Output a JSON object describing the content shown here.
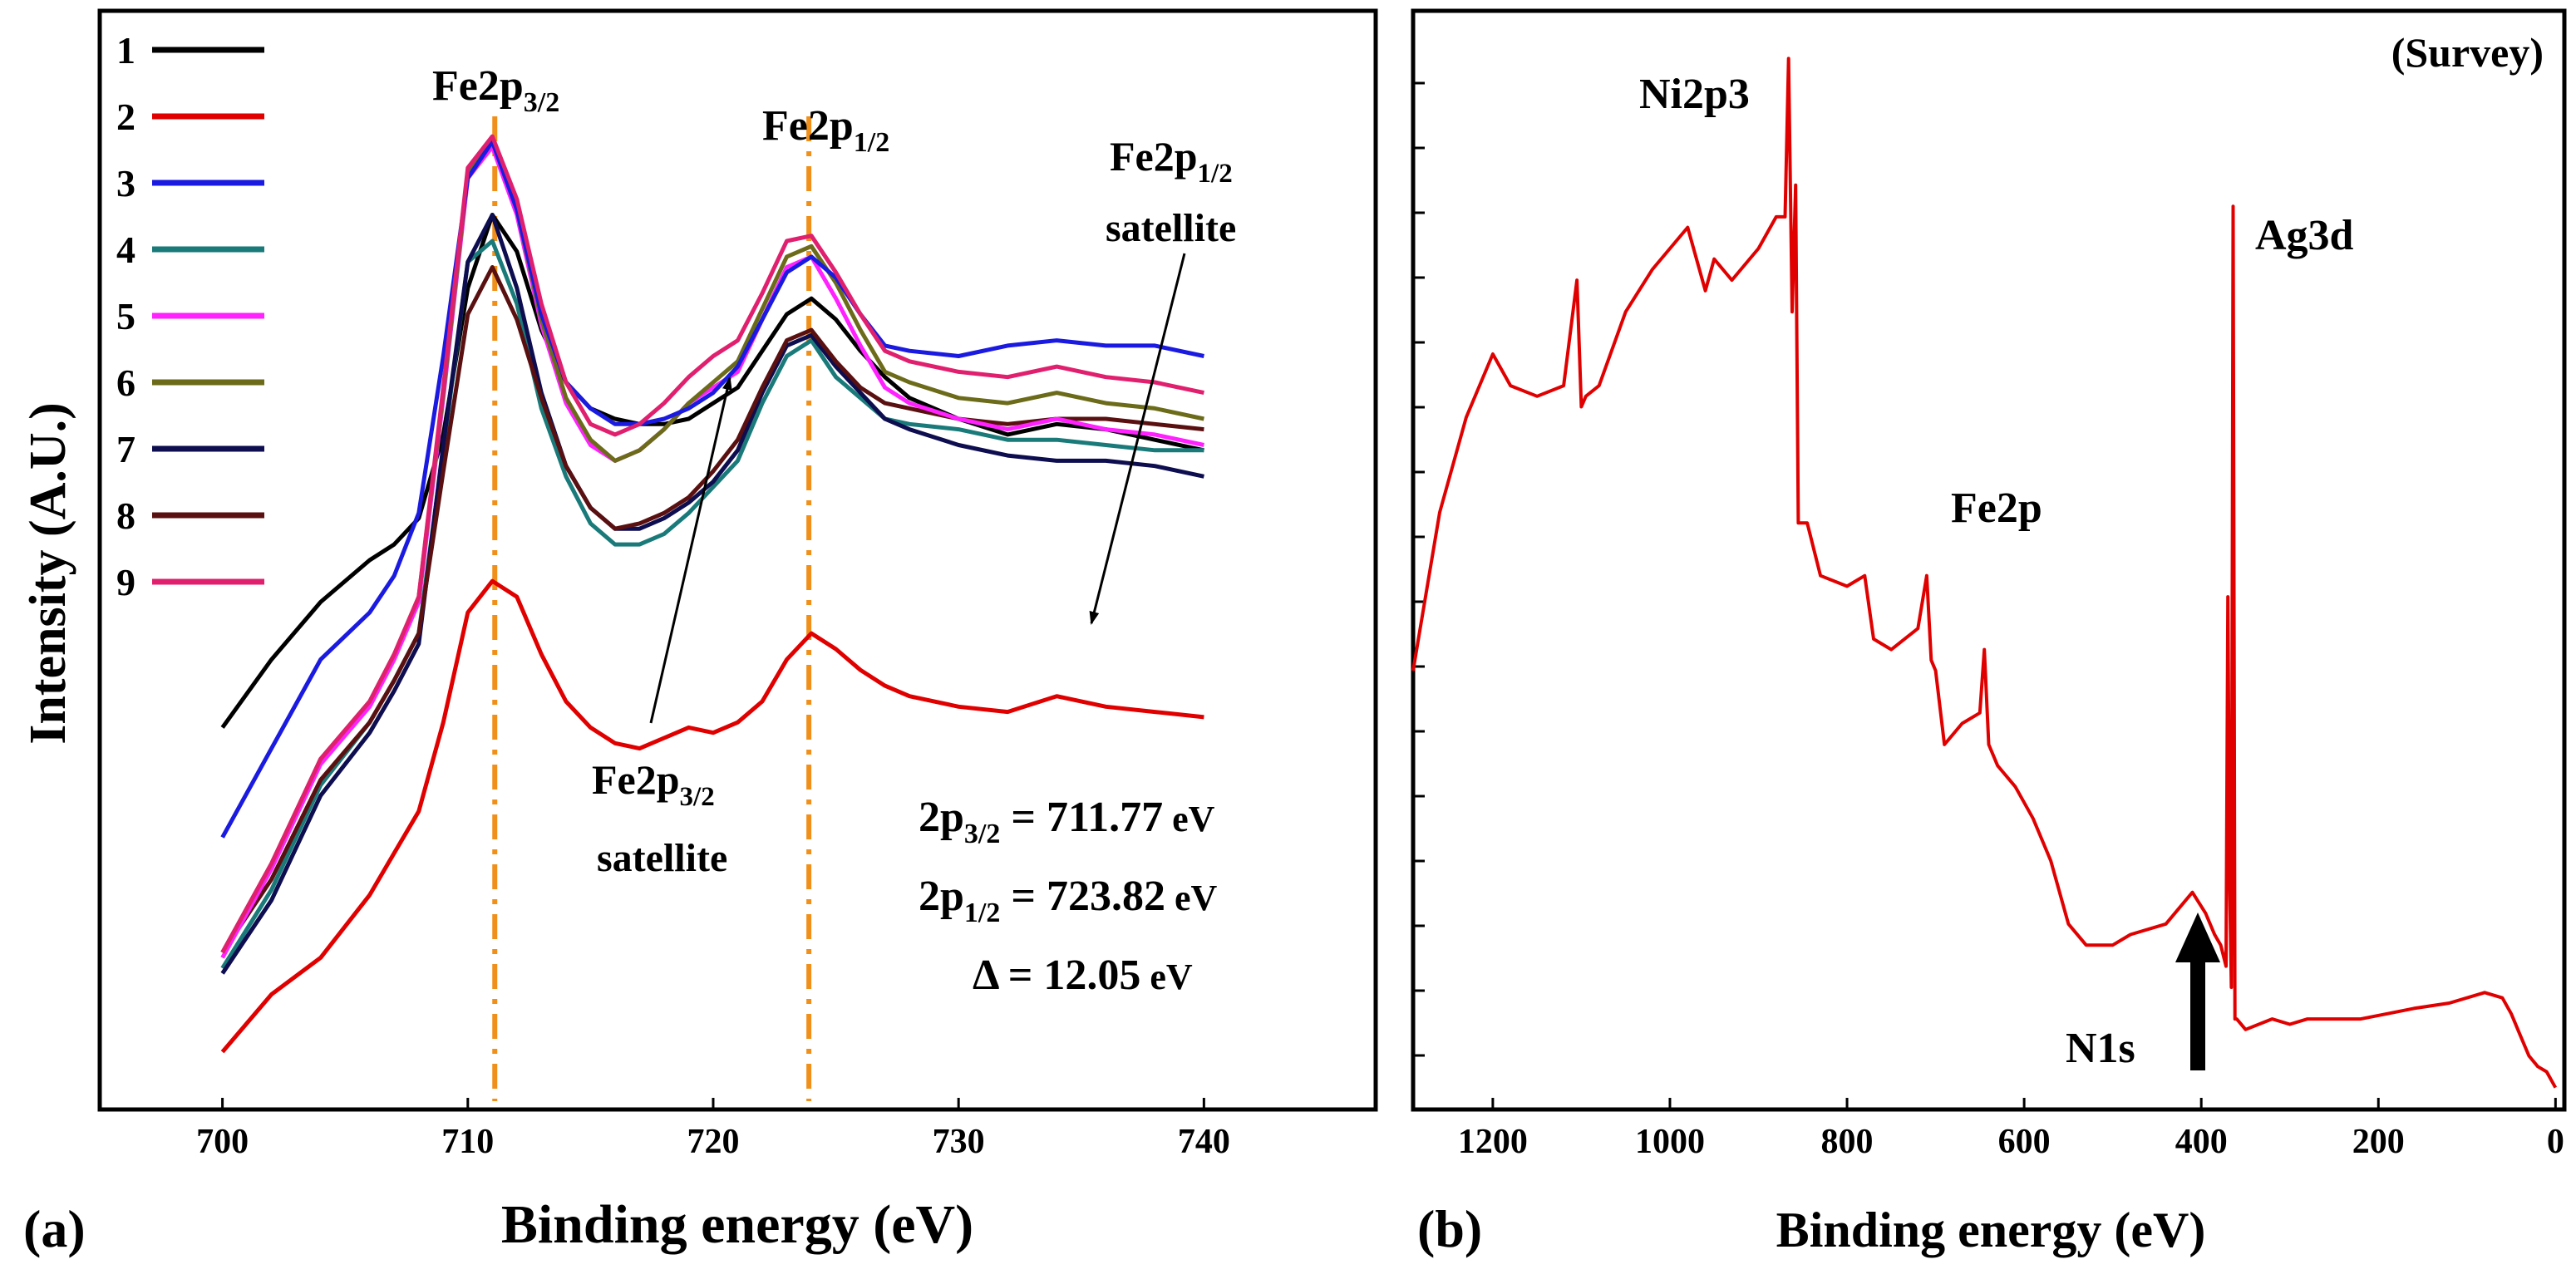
{
  "figure": {
    "panel_a_label": "(a)",
    "panel_b_label": "(b)"
  },
  "chart_data": [
    {
      "type": "line",
      "panel": "(a)",
      "xlabel": "Binding energy (eV)",
      "ylabel": "Intensity (A.U.)",
      "xlim": [
        695,
        747
      ],
      "ylim": [
        0,
        10.5
      ],
      "xticks": [
        700,
        710,
        720,
        730,
        740
      ],
      "xtick_labels": [
        "700",
        "710",
        "720",
        "730",
        "740"
      ],
      "grid": false,
      "legend_position": "top-left",
      "x": [
        700,
        702,
        704,
        706,
        707,
        708,
        709,
        710,
        711,
        712,
        713,
        714,
        715,
        716,
        717,
        718,
        719,
        720,
        721,
        722,
        723,
        724,
        725,
        726,
        727,
        728,
        730,
        732,
        734,
        736,
        738,
        740
      ],
      "series": [
        {
          "name": "1",
          "color": "#000000",
          "values": [
            3.65,
            4.3,
            4.85,
            5.25,
            5.4,
            5.65,
            6.45,
            7.85,
            8.55,
            8.2,
            7.45,
            6.95,
            6.7,
            6.6,
            6.55,
            6.55,
            6.6,
            6.75,
            6.9,
            7.25,
            7.6,
            7.75,
            7.55,
            7.25,
            7.0,
            6.8,
            6.6,
            6.45,
            6.55,
            6.5,
            6.4,
            6.3
          ]
        },
        {
          "name": "2",
          "color": "#e00000",
          "values": [
            0.55,
            1.1,
            1.45,
            2.05,
            2.45,
            2.85,
            3.7,
            4.75,
            5.05,
            4.9,
            4.35,
            3.9,
            3.65,
            3.5,
            3.45,
            3.55,
            3.65,
            3.6,
            3.7,
            3.9,
            4.3,
            4.55,
            4.4,
            4.2,
            4.05,
            3.95,
            3.85,
            3.8,
            3.95,
            3.85,
            3.8,
            3.75
          ]
        },
        {
          "name": "3",
          "color": "#1a1ae0",
          "values": [
            2.6,
            3.45,
            4.3,
            4.75,
            5.1,
            5.7,
            7.2,
            8.9,
            9.25,
            8.6,
            7.6,
            6.95,
            6.7,
            6.55,
            6.55,
            6.6,
            6.7,
            6.85,
            7.1,
            7.55,
            8.0,
            8.15,
            7.95,
            7.6,
            7.3,
            7.25,
            7.2,
            7.3,
            7.35,
            7.3,
            7.3,
            7.2
          ]
        },
        {
          "name": "4",
          "color": "#1a7a7a",
          "values": [
            1.35,
            2.1,
            3.1,
            3.7,
            4.1,
            4.55,
            6.3,
            8.1,
            8.3,
            7.7,
            6.7,
            6.05,
            5.6,
            5.4,
            5.4,
            5.5,
            5.7,
            5.95,
            6.2,
            6.75,
            7.2,
            7.35,
            7.0,
            6.8,
            6.6,
            6.55,
            6.5,
            6.4,
            6.4,
            6.35,
            6.3,
            6.3
          ]
        },
        {
          "name": "5",
          "color": "#ff22ff",
          "values": [
            1.45,
            2.3,
            3.3,
            3.85,
            4.3,
            4.85,
            6.8,
            8.9,
            9.2,
            8.55,
            7.5,
            6.75,
            6.35,
            6.2,
            6.3,
            6.5,
            6.75,
            6.9,
            7.05,
            7.55,
            8.05,
            8.15,
            7.75,
            7.3,
            6.9,
            6.75,
            6.6,
            6.5,
            6.6,
            6.5,
            6.45,
            6.35
          ]
        },
        {
          "name": "6",
          "color": "#6b6b1a",
          "values": [
            1.5,
            2.35,
            3.35,
            3.9,
            4.35,
            4.9,
            6.85,
            8.95,
            9.25,
            8.6,
            7.55,
            6.8,
            6.4,
            6.2,
            6.3,
            6.5,
            6.75,
            6.95,
            7.15,
            7.65,
            8.15,
            8.25,
            7.9,
            7.45,
            7.05,
            6.95,
            6.8,
            6.75,
            6.85,
            6.75,
            6.7,
            6.6
          ]
        },
        {
          "name": "7",
          "color": "#0d0d50",
          "values": [
            1.3,
            2.0,
            3.0,
            3.6,
            4.0,
            4.45,
            6.35,
            8.1,
            8.55,
            7.85,
            6.85,
            6.15,
            5.75,
            5.55,
            5.55,
            5.65,
            5.8,
            6.0,
            6.3,
            6.85,
            7.3,
            7.4,
            7.1,
            6.85,
            6.6,
            6.5,
            6.35,
            6.25,
            6.2,
            6.2,
            6.15,
            6.05
          ]
        },
        {
          "name": "8",
          "color": "#5a1010",
          "values": [
            1.5,
            2.2,
            3.15,
            3.7,
            4.1,
            4.55,
            6.1,
            7.6,
            8.05,
            7.55,
            6.8,
            6.15,
            5.75,
            5.55,
            5.6,
            5.7,
            5.85,
            6.1,
            6.4,
            6.9,
            7.35,
            7.45,
            7.15,
            6.9,
            6.75,
            6.7,
            6.6,
            6.55,
            6.6,
            6.6,
            6.55,
            6.5
          ]
        },
        {
          "name": "9",
          "color": "#e0206e",
          "values": [
            1.5,
            2.35,
            3.35,
            3.9,
            4.35,
            4.9,
            6.9,
            9.0,
            9.3,
            8.7,
            7.7,
            6.95,
            6.55,
            6.45,
            6.55,
            6.75,
            7.0,
            7.2,
            7.35,
            7.8,
            8.3,
            8.35,
            8.0,
            7.6,
            7.25,
            7.15,
            7.05,
            7.0,
            7.1,
            7.0,
            6.95,
            6.85
          ]
        }
      ],
      "reference_lines": [
        711.1,
        723.9
      ],
      "annotations": {
        "fe2p32": {
          "main": "Fe2p",
          "sub": "3/2"
        },
        "fe2p12": {
          "main": "Fe2p",
          "sub": "1/2"
        },
        "sat12": {
          "main": "Fe2p",
          "sub": "1/2",
          "line2": "satellite"
        },
        "sat32": {
          "main": "Fe2p",
          "sub": "3/2",
          "line2": "satellite"
        },
        "eq1": {
          "lhs": "2p",
          "sub": "3/2",
          "rhs": " = 711.77",
          "unit": " eV"
        },
        "eq2": {
          "lhs": "2p",
          "sub": "1/2",
          "rhs": " = 723.82",
          "unit": " eV"
        },
        "eq3": {
          "lhs": "Δ = 12.05",
          "unit": " eV"
        }
      }
    },
    {
      "type": "line",
      "panel": "(b)",
      "title": "(Survey)",
      "xlabel": "Binding energy (eV)",
      "ylabel": "",
      "xlim": [
        1290,
        -10
      ],
      "ylim": [
        0,
        10
      ],
      "xticks": [
        1200,
        1000,
        800,
        600,
        400,
        200,
        0
      ],
      "xtick_labels": [
        "1200",
        "1000",
        "800",
        "600",
        "400",
        "200",
        "0"
      ],
      "grid": false,
      "color": "#e00000",
      "x": [
        1290,
        1260,
        1230,
        1200,
        1180,
        1150,
        1120,
        1105,
        1100,
        1095,
        1080,
        1050,
        1020,
        1000,
        980,
        960,
        950,
        930,
        900,
        880,
        870,
        866,
        862,
        858,
        855,
        845,
        830,
        800,
        780,
        770,
        750,
        720,
        710,
        705,
        700,
        690,
        670,
        650,
        645,
        640,
        630,
        610,
        590,
        570,
        550,
        530,
        520,
        500,
        480,
        440,
        410,
        395,
        385,
        378,
        372,
        370,
        368,
        366,
        364,
        362,
        360,
        350,
        320,
        300,
        280,
        260,
        220,
        190,
        160,
        120,
        80,
        60,
        50,
        40,
        30,
        20,
        10,
        0
      ],
      "values": [
        4.0,
        5.5,
        6.4,
        7.0,
        6.7,
        6.6,
        6.7,
        7.7,
        6.5,
        6.6,
        6.7,
        7.4,
        7.8,
        8.0,
        8.2,
        7.6,
        7.9,
        7.7,
        8.0,
        8.3,
        8.3,
        9.8,
        7.4,
        8.6,
        5.4,
        5.4,
        4.9,
        4.8,
        4.9,
        4.3,
        4.2,
        4.4,
        4.9,
        4.1,
        4.0,
        3.3,
        3.5,
        3.6,
        4.2,
        3.3,
        3.1,
        2.9,
        2.6,
        2.2,
        1.6,
        1.4,
        1.4,
        1.4,
        1.5,
        1.6,
        1.9,
        1.7,
        1.5,
        1.4,
        1.2,
        4.7,
        2.0,
        1.0,
        8.4,
        0.7,
        0.7,
        0.6,
        0.7,
        0.65,
        0.7,
        0.7,
        0.7,
        0.75,
        0.8,
        0.85,
        0.95,
        0.9,
        0.75,
        0.55,
        0.35,
        0.25,
        0.2,
        0.05
      ],
      "annotations": {
        "ni": "Ni2p3",
        "ag": "Ag3d",
        "fe": "Fe2p",
        "n1s": "N1s"
      }
    }
  ]
}
